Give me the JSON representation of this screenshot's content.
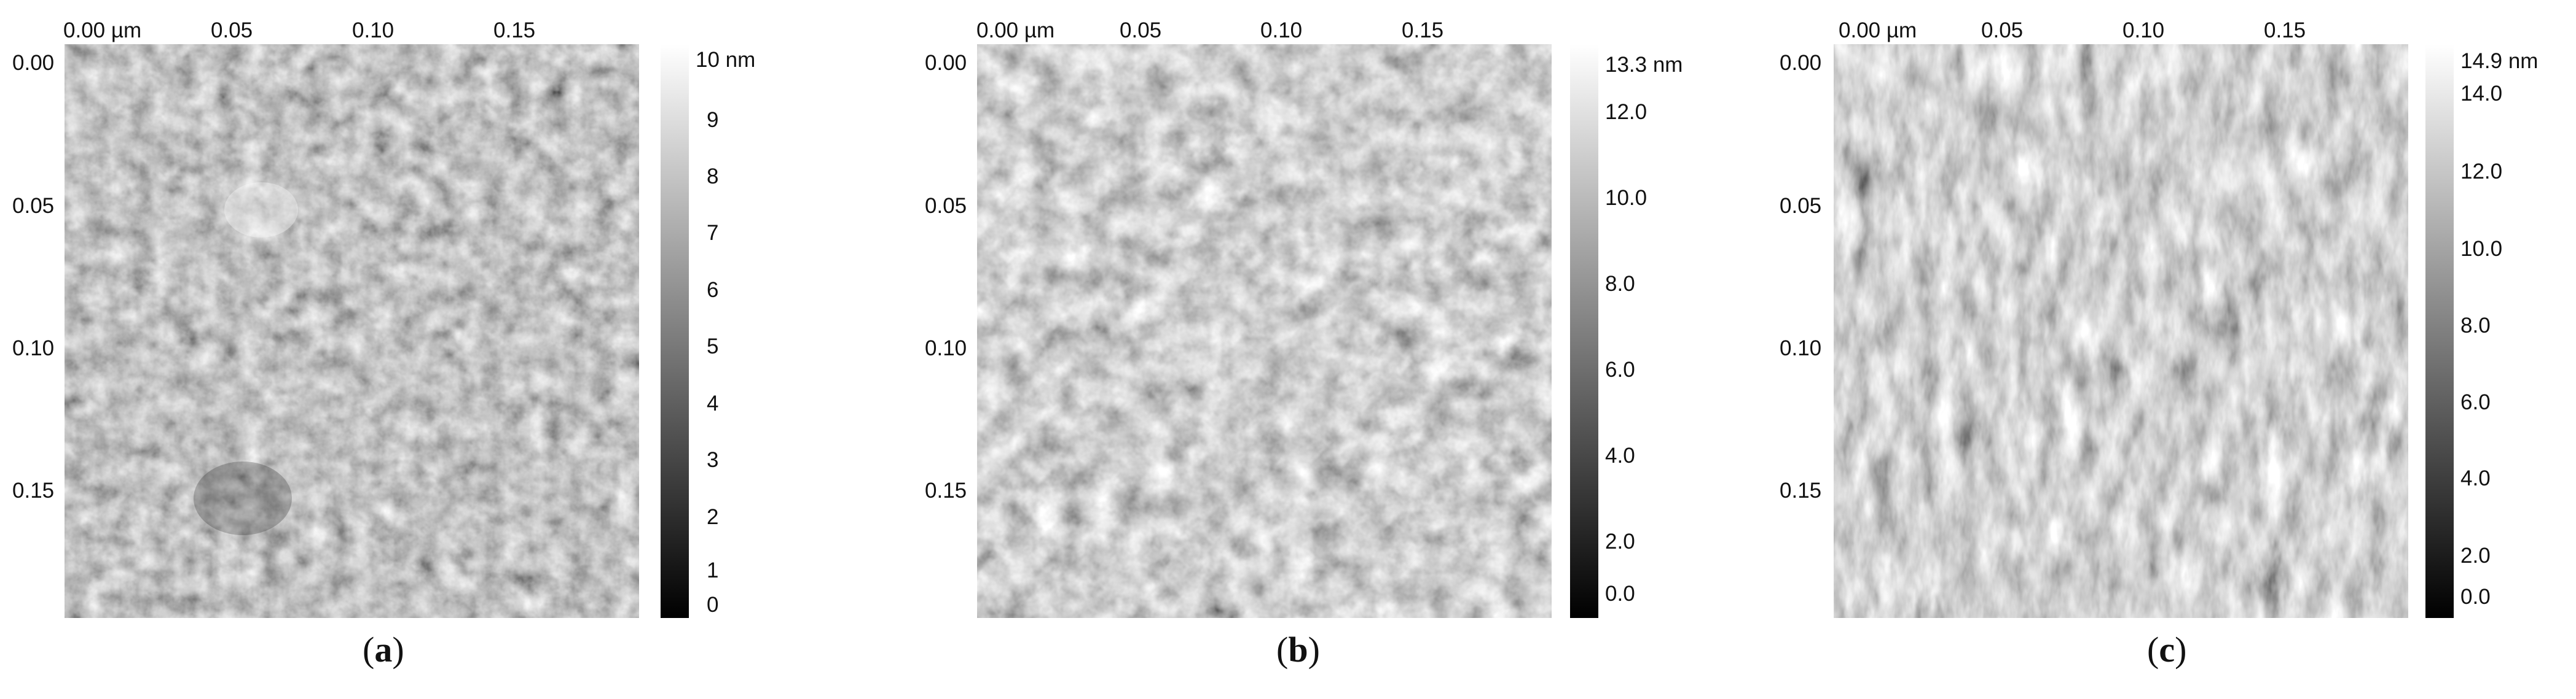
{
  "panels": [
    {
      "id": "a",
      "x_ticks": [
        "0.00 µm",
        "0.05",
        "0.10",
        "0.15"
      ],
      "y_ticks": [
        "0.00",
        "0.05",
        "0.10",
        "0.15"
      ],
      "colorbar_ticks": [
        "10 nm",
        "9",
        "8",
        "7",
        "6",
        "5",
        "4",
        "3",
        "2",
        "1",
        "0"
      ],
      "colorbar_range_nm": [
        0,
        10
      ],
      "caption_letter": "a",
      "texture": {
        "mean_gray": "#8a8a8a",
        "contrast": 1.0,
        "grain": "small-round"
      }
    },
    {
      "id": "b",
      "x_ticks": [
        "0.00 µm",
        "0.05",
        "0.10",
        "0.15"
      ],
      "y_ticks": [
        "0.00",
        "0.05",
        "0.10",
        "0.15"
      ],
      "colorbar_ticks": [
        "13.3 nm",
        "12.0",
        "10.0",
        "8.0",
        "6.0",
        "4.0",
        "2.0",
        "0.0"
      ],
      "colorbar_range_nm": [
        0,
        13.3
      ],
      "caption_letter": "b",
      "texture": {
        "mean_gray": "#9a9a9a",
        "contrast": 1.15,
        "grain": "medium-round"
      }
    },
    {
      "id": "c",
      "x_ticks": [
        "0.00 µm",
        "0.05",
        "0.10",
        "0.15"
      ],
      "y_ticks": [
        "0.00",
        "0.05",
        "0.10",
        "0.15"
      ],
      "colorbar_ticks": [
        "14.9 nm",
        "14.0",
        "12.0",
        "10.0",
        "8.0",
        "6.0",
        "4.0",
        "2.0",
        "0.0"
      ],
      "colorbar_range_nm": [
        0,
        14.9
      ],
      "caption_letter": "c",
      "texture": {
        "mean_gray": "#8e8e8e",
        "contrast": 1.25,
        "grain": "vertical-elongated"
      }
    }
  ],
  "caption_open": "(",
  "caption_close": ")"
}
